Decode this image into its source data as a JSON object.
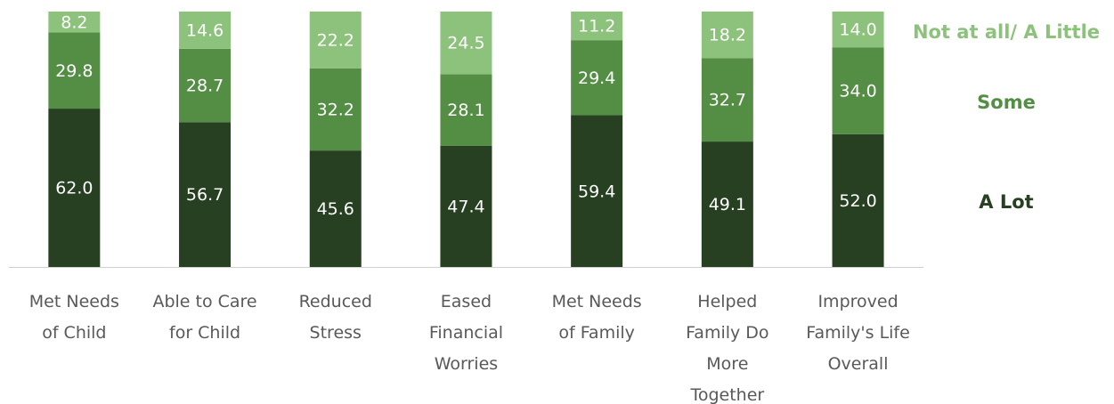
{
  "chart_data": {
    "type": "stacked_bar",
    "categories": [
      "Met Needs\nof Child",
      "Able to Care\nfor Child",
      "Reduced\nStress",
      "Eased\nFinancial\nWorries",
      "Met Needs\nof Family",
      "Helped\nFamily Do\nMore\nTogether",
      "Improved\nFamily's Life\nOverall"
    ],
    "series": [
      {
        "name": "A Lot",
        "color": "#264021",
        "values": [
          62.0,
          56.7,
          45.6,
          47.4,
          59.4,
          49.1,
          52.0
        ],
        "value_labels": [
          "62.0",
          "56.7",
          "45.6",
          "47.4",
          "59.4",
          "49.1",
          "52.0"
        ]
      },
      {
        "name": "Some",
        "color": "#548e45",
        "values": [
          29.8,
          28.7,
          32.2,
          28.1,
          29.4,
          32.7,
          34.0
        ],
        "value_labels": [
          "29.8",
          "28.7",
          "32.2",
          "28.1",
          "29.4",
          "32.7",
          "34.0"
        ]
      },
      {
        "name": "Not at all/ A Little",
        "color": "#8dc27c",
        "values": [
          8.2,
          14.6,
          22.2,
          24.5,
          11.2,
          18.2,
          14.0
        ],
        "value_labels": [
          "8.2",
          "14.6",
          "22.2",
          "24.5",
          "11.2",
          "18.2",
          "14.0"
        ]
      }
    ],
    "ylim": [
      0,
      100
    ]
  }
}
